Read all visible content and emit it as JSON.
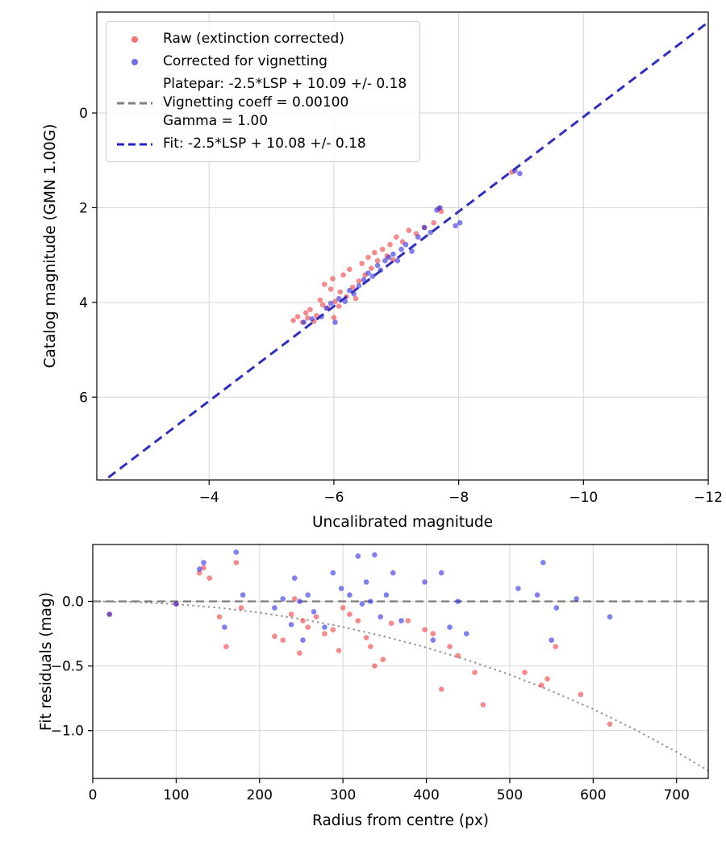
{
  "figure": {
    "background": "#ffffff",
    "colors": {
      "red_marker": "#f03c3c",
      "blue_marker": "#2a2ae6",
      "fit_line": "#2222cc",
      "platepar_line": "#808080",
      "zero_line": "#707070",
      "vignetting_curve": "#8a8a8a",
      "grid": "#d9d9d9",
      "axis": "#000000"
    }
  },
  "chart_data": [
    {
      "type": "scatter",
      "title": "",
      "xlabel": "Uncalibrated magnitude",
      "ylabel": "Catalog magnitude (GMN 1.00G)",
      "xlim": [
        -2.2,
        -12.0
      ],
      "ylim": [
        7.75,
        -2.13
      ],
      "x_inverted": true,
      "y_inverted": true,
      "grid": true,
      "x_ticks": [
        -4,
        -6,
        -8,
        -10,
        -12
      ],
      "x_tick_labels": [
        "−4",
        "−6",
        "−8",
        "−10",
        "−12"
      ],
      "y_ticks": [
        0,
        2,
        4,
        6
      ],
      "y_tick_labels": [
        "0",
        "2",
        "4",
        "6"
      ],
      "legend_position": "upper left",
      "legend": {
        "raw": "Raw (extinction corrected)",
        "corrected": "Corrected for vignetting",
        "platepar_line1": "Platepar: -2.5*LSP + 10.09 +/- 0.18",
        "platepar_line2": "Vignetting coeff = 0.00100",
        "platepar_line3": "Gamma = 1.00",
        "fit": "Fit: -2.5*LSP + 10.08 +/- 0.18"
      },
      "series": [
        {
          "key": "raw-scatter",
          "name": "Raw (extinction corrected)",
          "type": "scatter",
          "color": "#f03c3c",
          "opacity": 0.6,
          "points": [
            [
              -5.35,
              4.38
            ],
            [
              -5.42,
              4.3
            ],
            [
              -5.5,
              4.42
            ],
            [
              -5.55,
              4.22
            ],
            [
              -5.58,
              4.33
            ],
            [
              -5.62,
              4.15
            ],
            [
              -5.68,
              4.4
            ],
            [
              -5.72,
              4.28
            ],
            [
              -5.78,
              3.95
            ],
            [
              -5.82,
              4.05
            ],
            [
              -5.85,
              3.62
            ],
            [
              -5.9,
              4.12
            ],
            [
              -5.95,
              3.72
            ],
            [
              -5.98,
              3.5
            ],
            [
              -6.0,
              4.32
            ],
            [
              -6.02,
              3.98
            ],
            [
              -6.08,
              4.08
            ],
            [
              -6.1,
              3.78
            ],
            [
              -6.15,
              3.42
            ],
            [
              -6.2,
              3.88
            ],
            [
              -6.25,
              3.3
            ],
            [
              -6.3,
              3.68
            ],
            [
              -6.35,
              3.92
            ],
            [
              -6.4,
              3.55
            ],
            [
              -6.45,
              3.18
            ],
            [
              -6.5,
              3.42
            ],
            [
              -6.55,
              3.05
            ],
            [
              -6.6,
              3.28
            ],
            [
              -6.65,
              2.95
            ],
            [
              -6.7,
              3.12
            ],
            [
              -6.78,
              2.88
            ],
            [
              -6.85,
              3.02
            ],
            [
              -6.9,
              2.78
            ],
            [
              -6.95,
              3.1
            ],
            [
              -7.0,
              2.62
            ],
            [
              -7.1,
              2.72
            ],
            [
              -7.2,
              2.48
            ],
            [
              -7.32,
              2.55
            ],
            [
              -7.45,
              2.42
            ],
            [
              -7.6,
              2.32
            ],
            [
              -7.68,
              2.02
            ],
            [
              -7.72,
              2.08
            ],
            [
              -8.85,
              1.25
            ]
          ]
        },
        {
          "key": "corrected-scatter",
          "name": "Corrected for vignetting",
          "type": "scatter",
          "color": "#2a2ae6",
          "opacity": 0.6,
          "points": [
            [
              -5.52,
              4.42
            ],
            [
              -5.65,
              4.35
            ],
            [
              -5.8,
              4.3
            ],
            [
              -5.88,
              4.12
            ],
            [
              -5.95,
              4.02
            ],
            [
              -6.02,
              4.42
            ],
            [
              -6.08,
              3.92
            ],
            [
              -6.18,
              3.98
            ],
            [
              -6.25,
              3.75
            ],
            [
              -6.32,
              3.82
            ],
            [
              -6.4,
              3.65
            ],
            [
              -6.48,
              3.52
            ],
            [
              -6.55,
              3.38
            ],
            [
              -6.62,
              3.45
            ],
            [
              -6.7,
              3.22
            ],
            [
              -6.75,
              3.32
            ],
            [
              -6.82,
              3.12
            ],
            [
              -6.88,
              3.05
            ],
            [
              -6.95,
              2.98
            ],
            [
              -7.02,
              3.12
            ],
            [
              -7.08,
              2.88
            ],
            [
              -7.15,
              2.78
            ],
            [
              -7.25,
              2.92
            ],
            [
              -7.35,
              2.62
            ],
            [
              -7.45,
              2.42
            ],
            [
              -7.55,
              2.52
            ],
            [
              -7.65,
              2.05
            ],
            [
              -7.7,
              2.0
            ],
            [
              -7.95,
              2.38
            ],
            [
              -8.02,
              2.32
            ],
            [
              -8.9,
              1.22
            ],
            [
              -8.98,
              1.28
            ]
          ]
        },
        {
          "key": "platepar-line",
          "name": "Platepar: -2.5*LSP + 10.09 +/- 0.18  Vignetting coeff = 0.00100  Gamma = 1.00",
          "type": "line",
          "color": "#808080",
          "opacity": 0.9,
          "width": 2.6,
          "dash": "11 7",
          "points": [
            [
              -2.2,
              7.89
            ],
            [
              -12.3,
              -2.21
            ]
          ]
        },
        {
          "key": "fit-line",
          "name": "Fit: -2.5*LSP + 10.08 +/- 0.18",
          "type": "line",
          "color": "#2222cc",
          "opacity": 0.9,
          "width": 2.8,
          "dash": "11 7",
          "points": [
            [
              -2.2,
              7.88
            ],
            [
              -12.3,
              -2.22
            ]
          ]
        }
      ]
    },
    {
      "type": "scatter",
      "title": "",
      "xlabel": "Radius from centre (px)",
      "ylabel": "Fit residuals (mag)",
      "xlim": [
        0,
        738
      ],
      "ylim": [
        -1.37,
        0.44
      ],
      "grid": true,
      "x_ticks": [
        0,
        100,
        200,
        300,
        400,
        500,
        600,
        700
      ],
      "x_tick_labels": [
        "0",
        "100",
        "200",
        "300",
        "400",
        "500",
        "600",
        "700"
      ],
      "y_ticks": [
        0.0,
        -0.5,
        -1.0
      ],
      "y_tick_labels": [
        "0.0",
        "−0.5",
        "−1.0"
      ],
      "series": [
        {
          "key": "zero-line",
          "name": "zero residual",
          "type": "line",
          "color": "#707070",
          "opacity": 0.9,
          "width": 2.2,
          "dash": "10 6",
          "points": [
            [
              0,
              0
            ],
            [
              738,
              0
            ]
          ]
        },
        {
          "key": "vignetting-curve",
          "name": "vignetting model",
          "type": "line",
          "color": "#8a8a8a",
          "opacity": 0.9,
          "width": 2,
          "dash": "2.5 4",
          "points": [
            [
              0,
              0
            ],
            [
              50,
              -0.005
            ],
            [
              100,
              -0.022
            ],
            [
              150,
              -0.049
            ],
            [
              200,
              -0.087
            ],
            [
              250,
              -0.137
            ],
            [
              300,
              -0.198
            ],
            [
              350,
              -0.272
            ],
            [
              400,
              -0.357
            ],
            [
              450,
              -0.455
            ],
            [
              500,
              -0.567
            ],
            [
              550,
              -0.693
            ],
            [
              600,
              -0.834
            ],
            [
              650,
              -0.991
            ],
            [
              700,
              -1.165
            ],
            [
              738,
              -1.31
            ]
          ]
        },
        {
          "key": "raw-residuals",
          "name": "raw residuals",
          "type": "scatter",
          "color": "#f03c3c",
          "opacity": 0.6,
          "points": [
            [
              20,
              -0.1
            ],
            [
              100,
              -0.02
            ],
            [
              128,
              0.22
            ],
            [
              133,
              0.26
            ],
            [
              140,
              0.18
            ],
            [
              152,
              -0.12
            ],
            [
              160,
              -0.35
            ],
            [
              172,
              0.3
            ],
            [
              178,
              -0.05
            ],
            [
              218,
              -0.27
            ],
            [
              228,
              -0.3
            ],
            [
              238,
              -0.1
            ],
            [
              242,
              0.02
            ],
            [
              248,
              -0.4
            ],
            [
              252,
              -0.15
            ],
            [
              258,
              -0.2
            ],
            [
              268,
              -0.12
            ],
            [
              278,
              -0.25
            ],
            [
              288,
              -0.22
            ],
            [
              295,
              -0.38
            ],
            [
              300,
              -0.05
            ],
            [
              308,
              -0.1
            ],
            [
              318,
              -0.15
            ],
            [
              328,
              -0.28
            ],
            [
              333,
              -0.35
            ],
            [
              338,
              -0.5
            ],
            [
              348,
              -0.45
            ],
            [
              358,
              -0.17
            ],
            [
              378,
              -0.15
            ],
            [
              398,
              -0.22
            ],
            [
              408,
              -0.25
            ],
            [
              418,
              -0.68
            ],
            [
              428,
              -0.35
            ],
            [
              438,
              -0.42
            ],
            [
              458,
              -0.55
            ],
            [
              468,
              -0.8
            ],
            [
              518,
              -0.55
            ],
            [
              538,
              -0.65
            ],
            [
              545,
              -0.6
            ],
            [
              555,
              -0.35
            ],
            [
              585,
              -0.72
            ],
            [
              620,
              -0.95
            ]
          ]
        },
        {
          "key": "corrected-residuals",
          "name": "corrected residuals",
          "type": "scatter",
          "color": "#2a2ae6",
          "opacity": 0.6,
          "points": [
            [
              20,
              -0.1
            ],
            [
              100,
              -0.02
            ],
            [
              128,
              0.25
            ],
            [
              133,
              0.3
            ],
            [
              158,
              -0.2
            ],
            [
              172,
              0.38
            ],
            [
              180,
              0.05
            ],
            [
              218,
              -0.05
            ],
            [
              228,
              0.02
            ],
            [
              238,
              -0.18
            ],
            [
              242,
              0.18
            ],
            [
              248,
              0.0
            ],
            [
              252,
              -0.3
            ],
            [
              258,
              0.05
            ],
            [
              265,
              -0.08
            ],
            [
              278,
              -0.2
            ],
            [
              288,
              0.22
            ],
            [
              298,
              0.1
            ],
            [
              308,
              0.05
            ],
            [
              318,
              0.35
            ],
            [
              323,
              -0.02
            ],
            [
              328,
              0.15
            ],
            [
              333,
              0.0
            ],
            [
              338,
              0.36
            ],
            [
              345,
              -0.12
            ],
            [
              352,
              0.05
            ],
            [
              360,
              0.22
            ],
            [
              370,
              -0.15
            ],
            [
              398,
              0.15
            ],
            [
              408,
              -0.3
            ],
            [
              418,
              0.22
            ],
            [
              428,
              -0.2
            ],
            [
              438,
              0.0
            ],
            [
              448,
              -0.25
            ],
            [
              510,
              0.1
            ],
            [
              533,
              0.05
            ],
            [
              540,
              0.3
            ],
            [
              550,
              -0.3
            ],
            [
              556,
              -0.05
            ],
            [
              580,
              0.02
            ],
            [
              620,
              -0.12
            ]
          ]
        }
      ]
    }
  ]
}
